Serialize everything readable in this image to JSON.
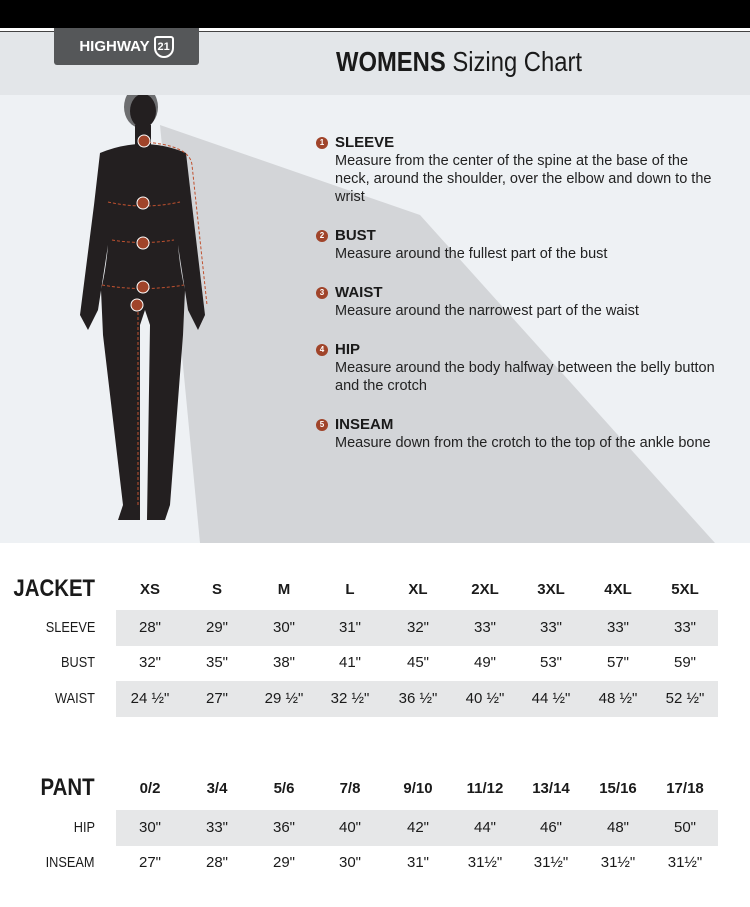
{
  "brand": {
    "logo_text": "HIGHWAY",
    "logo_num": "21"
  },
  "title": {
    "bold": "WOMENS",
    "rest": "Sizing Chart"
  },
  "accent": "#a0442a",
  "instructions": [
    {
      "num": "1",
      "heading": "SLEEVE",
      "text": "Measure from the center of the spine at the base of the neck, around the shoulder, over the elbow and down to the wrist"
    },
    {
      "num": "2",
      "heading": "BUST",
      "text": "Measure around the fullest part of the bust"
    },
    {
      "num": "3",
      "heading": "WAIST",
      "text": "Measure around the narrowest part of the waist"
    },
    {
      "num": "4",
      "heading": "HIP",
      "text": "Measure around the body halfway between the belly button and the crotch"
    },
    {
      "num": "5",
      "heading": "INSEAM",
      "text": "Measure down from the crotch to the top of the ankle bone"
    }
  ],
  "jacket": {
    "label": "JACKET",
    "sizes": [
      "XS",
      "S",
      "M",
      "L",
      "XL",
      "2XL",
      "3XL",
      "4XL",
      "5XL"
    ],
    "rows": [
      {
        "label": "SLEEVE",
        "values": [
          "28\"",
          "29\"",
          "30\"",
          "31\"",
          "32\"",
          "33\"",
          "33\"",
          "33\"",
          "33\""
        ]
      },
      {
        "label": "BUST",
        "values": [
          "32\"",
          "35\"",
          "38\"",
          "41\"",
          "45\"",
          "49\"",
          "53\"",
          "57\"",
          "59\""
        ]
      },
      {
        "label": "WAIST",
        "values": [
          "24 ½\"",
          "27\"",
          "29 ½\"",
          "32 ½\"",
          "36 ½\"",
          "40 ½\"",
          "44 ½\"",
          "48 ½\"",
          "52 ½\""
        ]
      }
    ]
  },
  "pant": {
    "label": "PANT",
    "sizes": [
      "0/2",
      "3/4",
      "5/6",
      "7/8",
      "9/10",
      "11/12",
      "13/14",
      "15/16",
      "17/18"
    ],
    "rows": [
      {
        "label": "HIP",
        "values": [
          "30\"",
          "33\"",
          "36\"",
          "40\"",
          "42\"",
          "44\"",
          "46\"",
          "48\"",
          "50\""
        ]
      },
      {
        "label": "INSEAM",
        "values": [
          "27\"",
          "28\"",
          "29\"",
          "30\"",
          "31\"",
          "31½\"",
          "31½\"",
          "31½\"",
          "31½\""
        ]
      }
    ]
  }
}
